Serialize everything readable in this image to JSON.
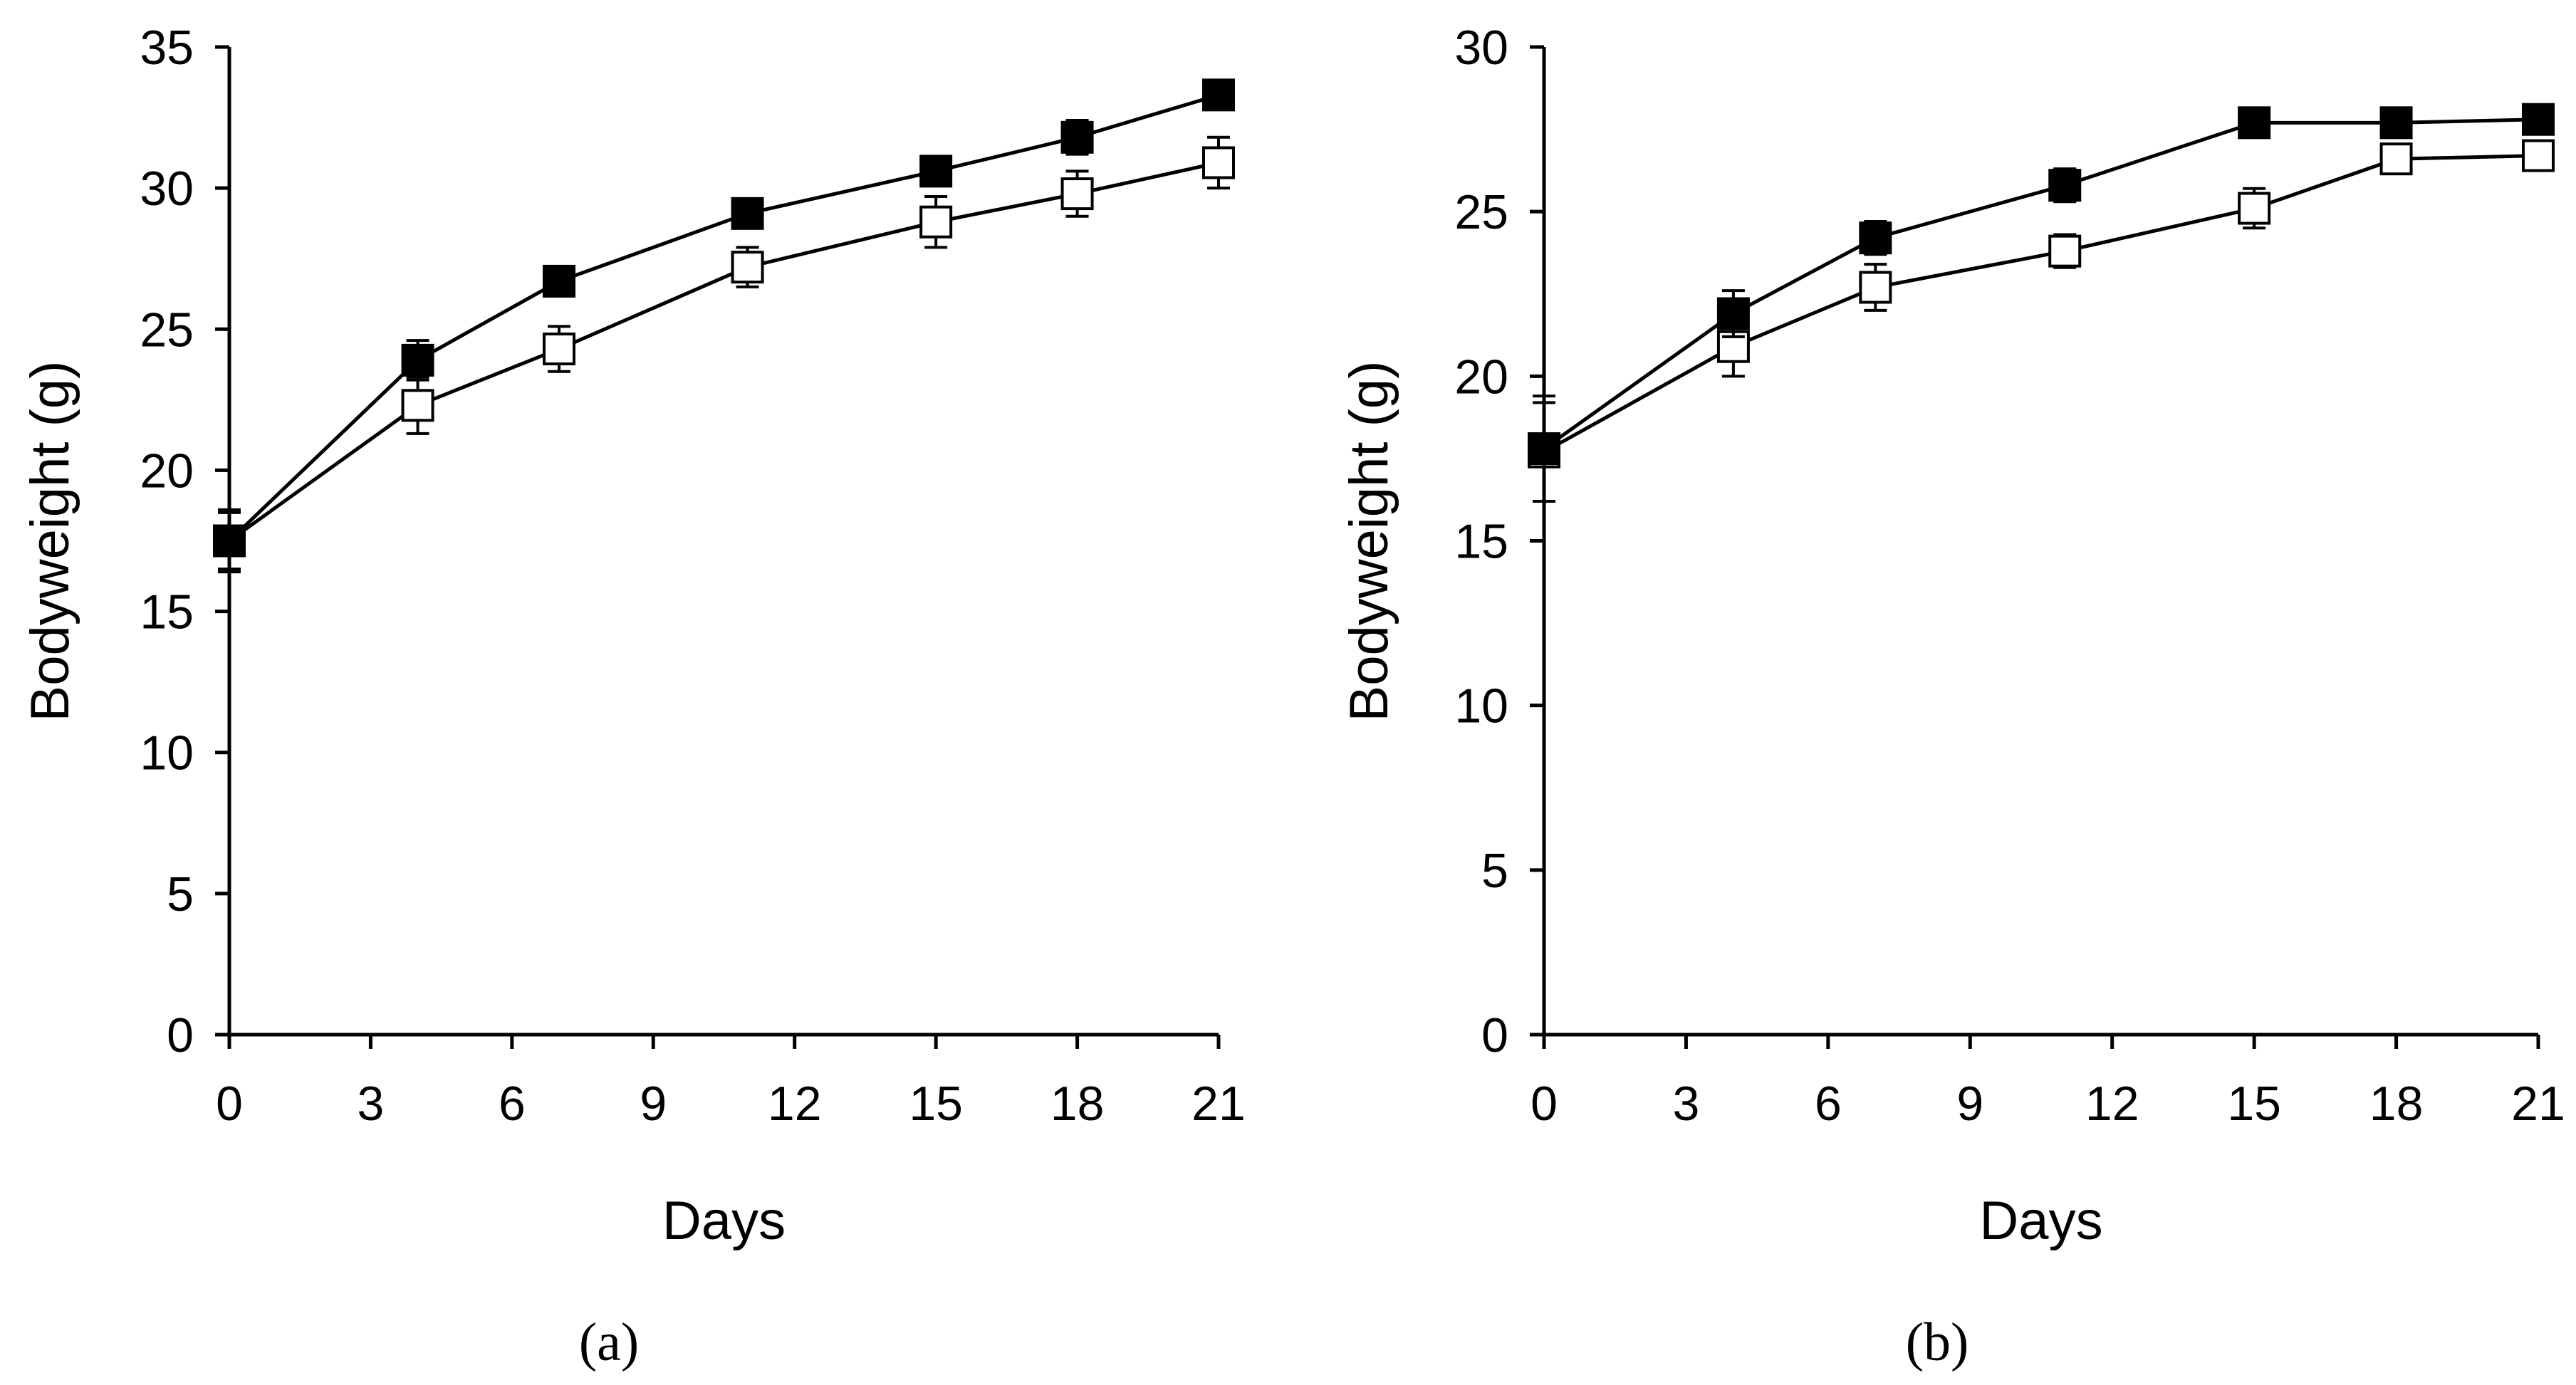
{
  "chart_data": [
    {
      "type": "line",
      "panel": "a",
      "title": "",
      "xlabel": "Days",
      "ylabel": "Bodyweight (g)",
      "xlim": [
        0,
        21
      ],
      "ylim": [
        0,
        35
      ],
      "xticks": [
        0,
        3,
        6,
        9,
        12,
        15,
        18,
        21
      ],
      "yticks": [
        0,
        5,
        10,
        15,
        20,
        25,
        30,
        35
      ],
      "grid": false,
      "series": [
        {
          "name": "filled squares",
          "marker": "filled-square",
          "x": [
            0,
            4,
            7,
            11,
            15,
            18,
            21
          ],
          "y": [
            17.5,
            23.9,
            26.7,
            29.1,
            30.6,
            31.8,
            33.3
          ],
          "err": [
            1.0,
            0.7,
            0.4,
            0.4,
            0.4,
            0.6,
            0.5
          ]
        },
        {
          "name": "open squares",
          "marker": "open-square",
          "x": [
            0,
            4,
            7,
            11,
            15,
            18,
            21
          ],
          "y": [
            17.5,
            22.3,
            24.3,
            27.2,
            28.8,
            29.8,
            30.9
          ],
          "err": [
            1.1,
            1.0,
            0.8,
            0.7,
            0.9,
            0.8,
            0.9
          ]
        }
      ]
    },
    {
      "type": "line",
      "panel": "b",
      "title": "",
      "xlabel": "Days",
      "ylabel": "Bodyweight (g)",
      "xlim": [
        0,
        21
      ],
      "ylim": [
        0,
        30
      ],
      "xticks": [
        0,
        3,
        6,
        9,
        12,
        15,
        18,
        21
      ],
      "yticks": [
        0,
        5,
        10,
        15,
        20,
        25,
        30
      ],
      "grid": false,
      "series": [
        {
          "name": "filled squares",
          "marker": "filled-square",
          "x": [
            0,
            4,
            7,
            11,
            15,
            18,
            21
          ],
          "y": [
            17.8,
            21.9,
            24.2,
            25.8,
            27.7,
            27.7,
            27.8
          ],
          "err": [
            1.6,
            0.7,
            0.5,
            0.5,
            0.4,
            0.4,
            0.3
          ]
        },
        {
          "name": "open squares",
          "marker": "open-square",
          "x": [
            0,
            4,
            7,
            11,
            15,
            18,
            21
          ],
          "y": [
            17.7,
            20.9,
            22.7,
            23.8,
            25.1,
            26.6,
            26.7
          ],
          "err": [
            1.5,
            0.9,
            0.7,
            0.5,
            0.6,
            0.4,
            0.2
          ]
        }
      ]
    }
  ],
  "captions": [
    "(a)",
    "(b)"
  ]
}
